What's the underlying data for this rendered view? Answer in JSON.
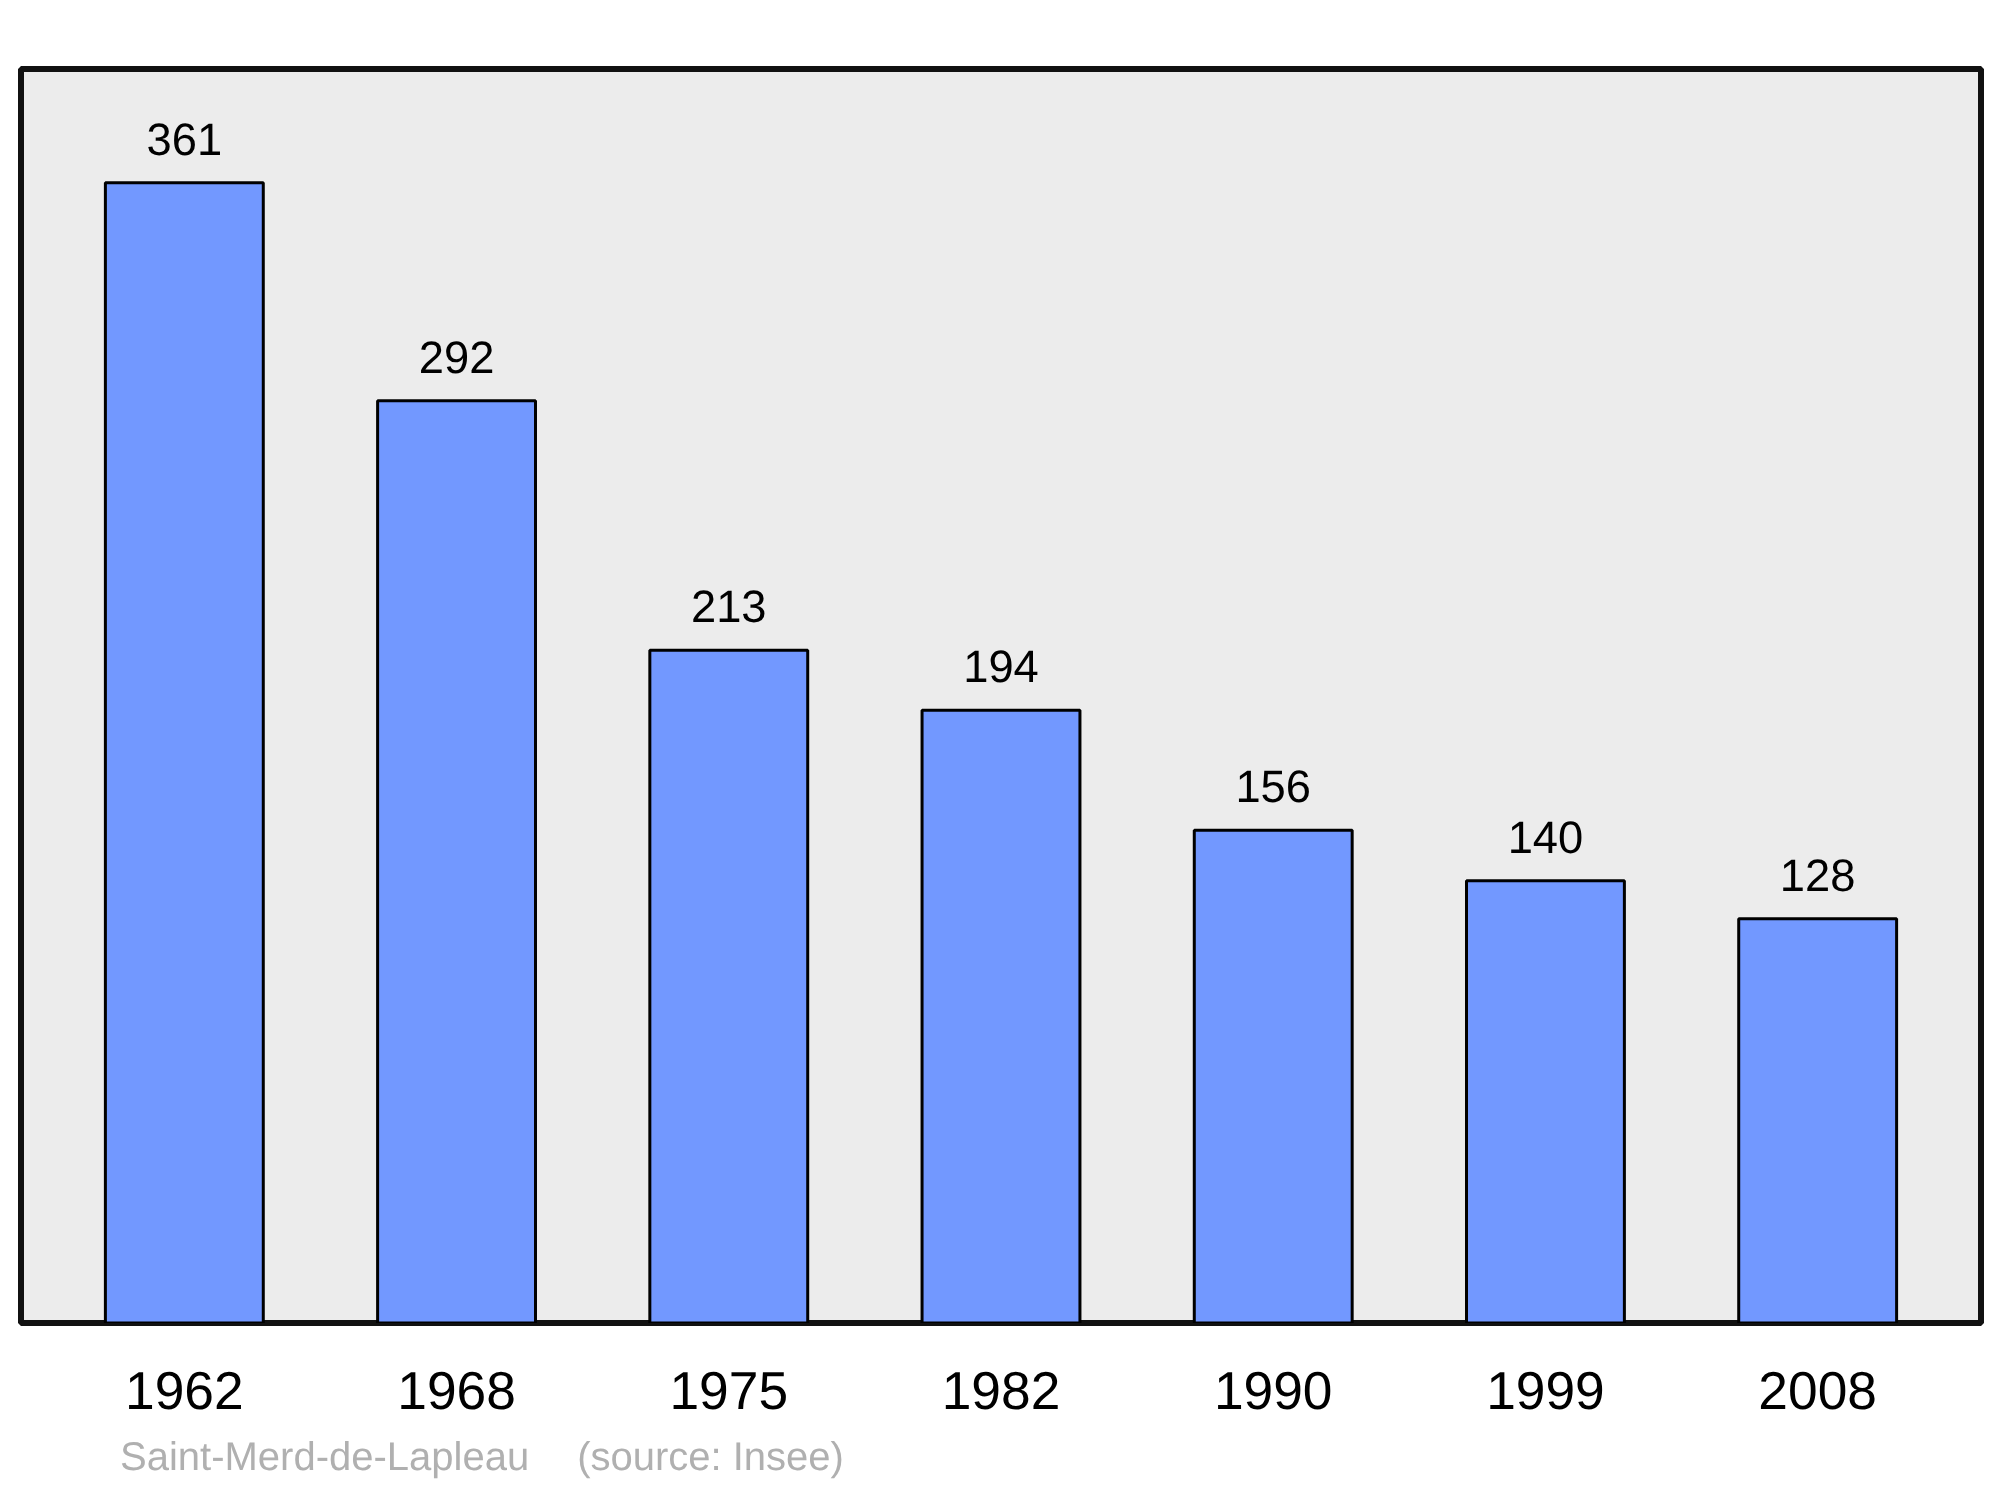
{
  "chart_data": {
    "type": "bar",
    "categories": [
      "1962",
      "1968",
      "1975",
      "1982",
      "1990",
      "1999",
      "2008"
    ],
    "values": [
      361,
      292,
      213,
      194,
      156,
      140,
      128
    ],
    "color": "#7298ff",
    "ylim": [
      0,
      397
    ],
    "data_labels": true,
    "grid": false,
    "tick_labels": "x",
    "annotations": [
      "Saint-Merd-de-Lapleau",
      "(source: Insee)"
    ]
  }
}
